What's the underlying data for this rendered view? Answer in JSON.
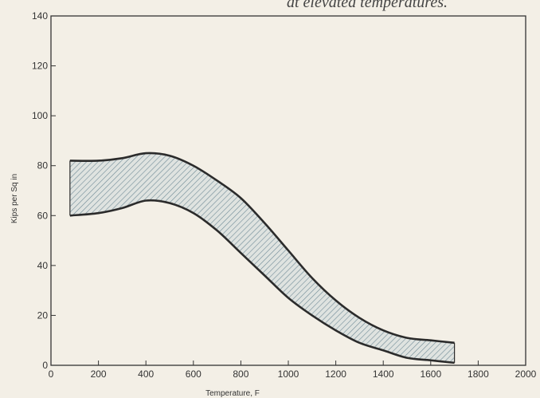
{
  "caption": "at elevated temperatures.",
  "chart_data": {
    "type": "area",
    "title": "",
    "xlabel": "Temperature, F",
    "ylabel": "Kips per Sq in",
    "xlim": [
      0,
      2000
    ],
    "ylim": [
      0,
      140
    ],
    "x_ticks": [
      0,
      200,
      400,
      600,
      800,
      1000,
      1200,
      1400,
      1600,
      1800,
      2000
    ],
    "y_ticks": [
      0,
      20,
      40,
      60,
      80,
      100,
      120,
      140
    ],
    "x_tick_labels": [
      "0",
      "200",
      "400",
      "600",
      "800",
      "1000",
      "1200",
      "1400",
      "1600",
      "1800",
      "2000"
    ],
    "y_tick_labels": [
      "0",
      "20",
      "40",
      "60",
      "80",
      "100",
      "120",
      "140"
    ],
    "grid": false,
    "fill": "hatched band between curves",
    "series": [
      {
        "role": "upper",
        "x": [
          80,
          200,
          300,
          400,
          500,
          600,
          700,
          800,
          900,
          1000,
          1100,
          1200,
          1300,
          1400,
          1500,
          1600,
          1700
        ],
        "y": [
          82,
          82,
          83,
          85,
          84,
          80,
          74,
          67,
          57,
          46,
          35,
          26,
          19,
          14,
          11,
          10,
          9
        ]
      },
      {
        "role": "lower",
        "x": [
          80,
          200,
          300,
          400,
          500,
          600,
          700,
          800,
          900,
          1000,
          1100,
          1200,
          1300,
          1400,
          1500,
          1600,
          1700
        ],
        "y": [
          60,
          61,
          63,
          66,
          65,
          61,
          54,
          45,
          36,
          27,
          20,
          14,
          9,
          6,
          3,
          2,
          1
        ]
      }
    ],
    "colors": {
      "line": "#2b2b2b",
      "hatch": "#6f8a96",
      "band_fill": "#dfe3e0",
      "frame": "#333333"
    }
  }
}
